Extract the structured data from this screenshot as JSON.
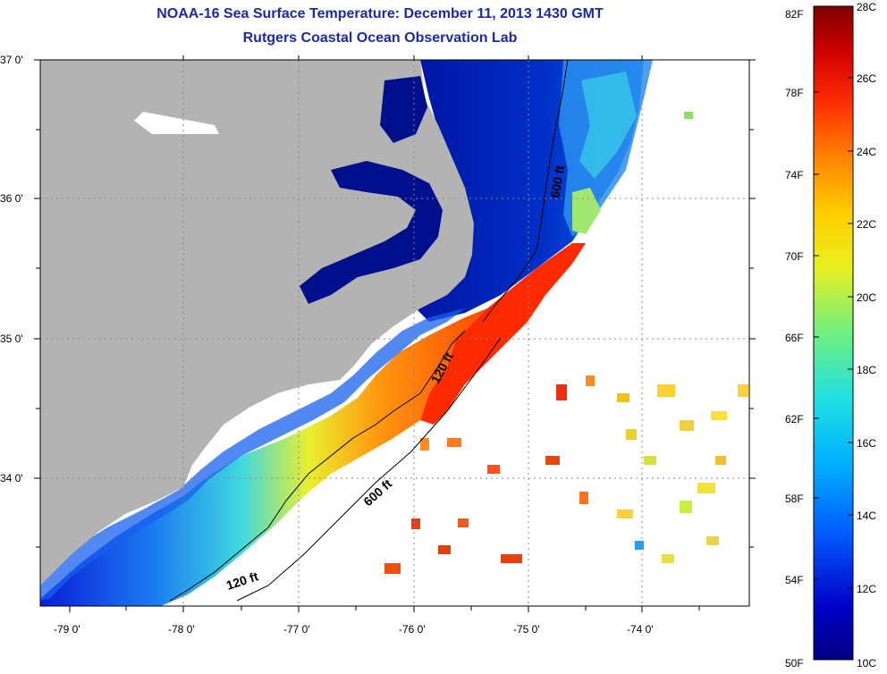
{
  "title": "NOAA-16 Sea Surface Temperature:  December 11, 2013 1430 GMT",
  "subtitle": "Rutgers Coastal Ocean Observation Lab",
  "lat_labels": [
    "37 0'",
    "36 0'",
    "35 0'",
    "34 0'"
  ],
  "lon_labels": [
    "-79 0'",
    "-78 0'",
    "-77 0'",
    "-76 0'",
    "-75 0'",
    "-74 0'"
  ],
  "isobath_labels": {
    "north_600": "600 ft",
    "mid_120": "120 ft",
    "south_600": "600 ft",
    "south_120": "120 ft"
  },
  "colorbar": {
    "fahrenheit": [
      "82F",
      "78F",
      "74F",
      "70F",
      "66F",
      "62F",
      "58F",
      "54F",
      "50F"
    ],
    "celsius": [
      "28C",
      "26C",
      "24C",
      "22C",
      "20C",
      "18C",
      "16C",
      "14C",
      "12C",
      "10C"
    ],
    "colors": [
      "#7f0000",
      "#d40000",
      "#ff3000",
      "#ff8c00",
      "#ffd800",
      "#c8f040",
      "#55e8a8",
      "#00c8ff",
      "#0070ff",
      "#0000c8",
      "#000080"
    ]
  },
  "colors": {
    "land": "#b3b3b3",
    "title": "#1a2aa8"
  }
}
